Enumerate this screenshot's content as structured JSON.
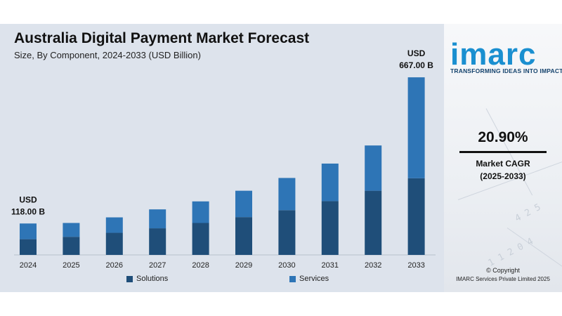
{
  "chart_data": {
    "type": "bar",
    "stacked": true,
    "title": "Australia Digital Payment Market Forecast",
    "subtitle": "Size, By Component, 2024-2033 (USD Billion)",
    "categories": [
      "2024",
      "2025",
      "2026",
      "2027",
      "2028",
      "2029",
      "2030",
      "2031",
      "2032",
      "2033"
    ],
    "series": [
      {
        "name": "Solutions",
        "values": [
          59,
          68,
          83,
          100,
          120,
          142,
          168,
          202,
          241,
          288
        ],
        "color": "#1f4e79"
      },
      {
        "name": "Services",
        "values": [
          59,
          52,
          58,
          71,
          81,
          99,
          121,
          141,
          170,
          379
        ],
        "color": "#2e75b6"
      }
    ],
    "ylim": [
      0,
      720
    ],
    "grid": false,
    "legend": "bottom",
    "annotations": [
      {
        "category": "2024",
        "line1": "USD",
        "line2": "118.00 B"
      },
      {
        "category": "2033",
        "line1": "USD",
        "line2": "667.00 B"
      }
    ]
  },
  "brand": {
    "logo": "imarc",
    "tagline": "TRANSFORMING IDEAS INTO IMPACT",
    "color": "#1a8fd0"
  },
  "cagr": {
    "value": "20.90%",
    "label": "Market CAGR",
    "period": "(2025-2033)"
  },
  "footer": {
    "copyright": "© Copyright",
    "entity": "IMARC Services Private Limited 2025"
  }
}
